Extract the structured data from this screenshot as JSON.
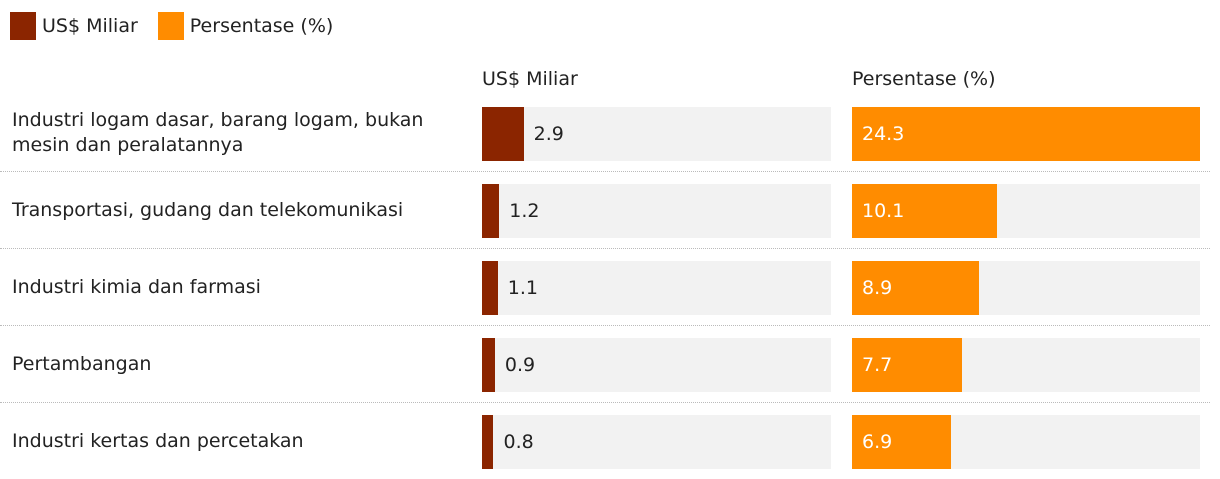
{
  "chart_data": {
    "type": "bar",
    "categories": [
      "Industri logam dasar, barang logam, bukan mesin dan peralatannya",
      "Transportasi, gudang dan telekomunikasi",
      "Industri kimia dan farmasi",
      "Pertambangan",
      "Industri kertas dan percetakan"
    ],
    "series": [
      {
        "name": "US$ Miliar",
        "color": "#8b2500",
        "values": [
          2.9,
          1.2,
          1.1,
          0.9,
          0.8
        ]
      },
      {
        "name": "Persentase (%)",
        "color": "#ff8c00",
        "values": [
          24.3,
          10.1,
          8.9,
          7.7,
          6.9
        ]
      }
    ]
  }
}
